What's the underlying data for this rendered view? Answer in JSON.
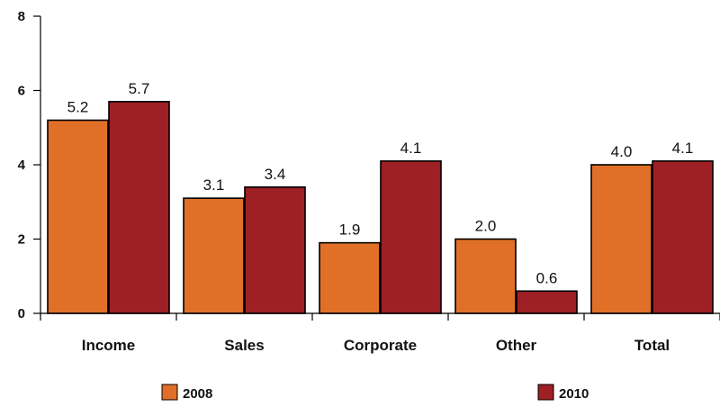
{
  "chart_data": {
    "type": "bar",
    "title": "",
    "xlabel": "",
    "ylabel": "",
    "categories": [
      "Income",
      "Sales",
      "Corporate",
      "Other",
      "Total"
    ],
    "series": [
      {
        "name": "2008",
        "color": "#E07028",
        "values": [
          5.2,
          3.1,
          1.9,
          2.0,
          4.0
        ]
      },
      {
        "name": "2010",
        "color": "#9E1F24",
        "values": [
          5.7,
          3.4,
          4.1,
          0.6,
          4.1
        ]
      }
    ],
    "data_labels": [
      [
        "5.2",
        "3.1",
        "1.9",
        "2.0",
        "4.0"
      ],
      [
        "5.7",
        "3.4",
        "4.1",
        "0.6",
        "4.1"
      ]
    ],
    "ylim": [
      0,
      8
    ],
    "yticks": [
      0,
      2,
      4,
      6,
      8
    ],
    "ytick_labels": [
      "0",
      "2",
      "4",
      "6",
      "8"
    ],
    "grid": false,
    "legend_position": "bottom"
  }
}
